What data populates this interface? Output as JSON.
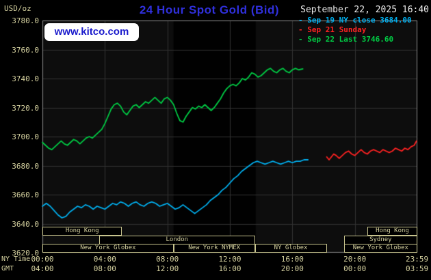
{
  "header": {
    "units": "USD/oz",
    "title": "24 Hour Spot Gold (Bid)",
    "datetime": "September 22, 2025 16:40",
    "logo": "www.kitco.com"
  },
  "legend": [
    {
      "marker": "-",
      "label": "Sep 19 NY close 3684.00",
      "color": "#00b0f0"
    },
    {
      "marker": "-",
      "label": "Sep 21 Sunday",
      "color": "#ff2222"
    },
    {
      "marker": "-",
      "label": "Sep 22 Last 3746.60",
      "color": "#00cc44"
    }
  ],
  "axes": {
    "ny_time_label": "NY Time",
    "gmt_label": "GMT"
  },
  "sessions": [
    {
      "label": "Hong Kong",
      "row": 0,
      "start": 0,
      "end": 5.1
    },
    {
      "label": "Hong Kong",
      "row": 0,
      "start": 20.8,
      "end": 24
    },
    {
      "label": "London",
      "row": 1,
      "start": 3.63,
      "end": 13.6
    },
    {
      "label": "Sydney",
      "row": 1,
      "start": 19.3,
      "end": 24
    },
    {
      "label": "New York Globex",
      "row": 2,
      "start": 0,
      "end": 8.4
    },
    {
      "label": "New York NYMEX",
      "row": 2,
      "start": 8.4,
      "end": 13.6
    },
    {
      "label": "NY Globex",
      "row": 2,
      "start": 13.6,
      "end": 18.2
    },
    {
      "label": "New York Globex",
      "row": 2,
      "start": 19.3,
      "end": 24
    }
  ],
  "colors": {
    "background": "#000000",
    "plot_bg": "#0d0d0d",
    "nymex_band": "#010101",
    "grid": "#333333",
    "frame": "#8c8c8c",
    "axis_text": "#d6d2a0",
    "title_blue": "#3030dd",
    "datetime_text": "#ececec",
    "logo_blue": "#1a1acc",
    "logo_bg": "#ffffff",
    "session_border": "#c8c48e"
  },
  "chart_data": {
    "type": "line",
    "title": "24 Hour Spot Gold (Bid)",
    "ylabel": "USD/oz",
    "ylim": [
      3620,
      3780
    ],
    "y_tick_step": 20,
    "y_tick_labels": [
      "3780.0",
      "3760.0",
      "3740.0",
      "3720.0",
      "3700.0",
      "3680.0",
      "3660.0",
      "3640.0",
      "3620.0"
    ],
    "xlim_hours": [
      0,
      24
    ],
    "x_ticks": [
      {
        "hour": 0,
        "ny": "00:00",
        "gmt": "04:00"
      },
      {
        "hour": 4,
        "ny": "04:00",
        "gmt": "08:00"
      },
      {
        "hour": 8,
        "ny": "08:00",
        "gmt": "12:00"
      },
      {
        "hour": 12,
        "ny": "12:00",
        "gmt": "16:00"
      },
      {
        "hour": 16,
        "ny": "16:00",
        "gmt": "20:00"
      },
      {
        "hour": 20,
        "ny": "20:00",
        "gmt": "00:00"
      },
      {
        "hour": 23.983,
        "ny": "23:59",
        "gmt": "03:59"
      }
    ],
    "grid": true,
    "legend_position": "top-right",
    "nymex_band_hours": [
      8.4,
      13.65
    ],
    "series": [
      {
        "name": "Sep 19 NY close 3684.00",
        "color": "#00b0f0",
        "points": [
          [
            0,
            3652
          ],
          [
            0.25,
            3654
          ],
          [
            0.5,
            3652
          ],
          [
            0.75,
            3649
          ],
          [
            1,
            3646
          ],
          [
            1.25,
            3644
          ],
          [
            1.5,
            3645
          ],
          [
            1.75,
            3648
          ],
          [
            2,
            3650
          ],
          [
            2.25,
            3652
          ],
          [
            2.5,
            3651
          ],
          [
            2.75,
            3653
          ],
          [
            3,
            3652
          ],
          [
            3.25,
            3650
          ],
          [
            3.5,
            3652
          ],
          [
            3.75,
            3651
          ],
          [
            4,
            3650
          ],
          [
            4.25,
            3652
          ],
          [
            4.5,
            3654
          ],
          [
            4.75,
            3653
          ],
          [
            5,
            3655
          ],
          [
            5.25,
            3654
          ],
          [
            5.5,
            3652
          ],
          [
            5.75,
            3654
          ],
          [
            6,
            3655
          ],
          [
            6.25,
            3653
          ],
          [
            6.5,
            3652
          ],
          [
            6.75,
            3654
          ],
          [
            7,
            3655
          ],
          [
            7.25,
            3654
          ],
          [
            7.5,
            3652
          ],
          [
            7.75,
            3653
          ],
          [
            8,
            3654
          ],
          [
            8.25,
            3652
          ],
          [
            8.5,
            3650
          ],
          [
            8.75,
            3651
          ],
          [
            9,
            3653
          ],
          [
            9.25,
            3651
          ],
          [
            9.5,
            3649
          ],
          [
            9.75,
            3647
          ],
          [
            10,
            3649
          ],
          [
            10.25,
            3651
          ],
          [
            10.5,
            3653
          ],
          [
            10.75,
            3656
          ],
          [
            11,
            3658
          ],
          [
            11.25,
            3660
          ],
          [
            11.5,
            3663
          ],
          [
            11.75,
            3665
          ],
          [
            12,
            3668
          ],
          [
            12.25,
            3671
          ],
          [
            12.5,
            3673
          ],
          [
            12.75,
            3676
          ],
          [
            13,
            3678
          ],
          [
            13.25,
            3680
          ],
          [
            13.5,
            3682
          ],
          [
            13.75,
            3683
          ],
          [
            14,
            3682
          ],
          [
            14.25,
            3681
          ],
          [
            14.5,
            3682
          ],
          [
            14.75,
            3683
          ],
          [
            15,
            3682
          ],
          [
            15.25,
            3681
          ],
          [
            15.5,
            3682
          ],
          [
            15.75,
            3683
          ],
          [
            16,
            3682
          ],
          [
            16.25,
            3683
          ],
          [
            16.5,
            3683
          ],
          [
            16.75,
            3684
          ],
          [
            17,
            3684
          ]
        ]
      },
      {
        "name": "Sep 21 Sunday",
        "color": "#ff2222",
        "points": [
          [
            18.2,
            3686
          ],
          [
            18.35,
            3684
          ],
          [
            18.5,
            3686
          ],
          [
            18.65,
            3688
          ],
          [
            18.8,
            3687
          ],
          [
            19,
            3685
          ],
          [
            19.2,
            3687
          ],
          [
            19.4,
            3689
          ],
          [
            19.6,
            3690
          ],
          [
            19.8,
            3688
          ],
          [
            20,
            3687
          ],
          [
            20.2,
            3689
          ],
          [
            20.4,
            3691
          ],
          [
            20.6,
            3689
          ],
          [
            20.8,
            3688
          ],
          [
            21,
            3690
          ],
          [
            21.2,
            3691
          ],
          [
            21.4,
            3690
          ],
          [
            21.6,
            3689
          ],
          [
            21.8,
            3691
          ],
          [
            22,
            3690
          ],
          [
            22.2,
            3689
          ],
          [
            22.4,
            3690
          ],
          [
            22.6,
            3692
          ],
          [
            22.8,
            3691
          ],
          [
            23,
            3690
          ],
          [
            23.2,
            3692
          ],
          [
            23.4,
            3691
          ],
          [
            23.6,
            3693
          ],
          [
            23.8,
            3694
          ],
          [
            23.95,
            3697
          ]
        ]
      },
      {
        "name": "Sep 22 Last 3746.60",
        "color": "#00cc44",
        "points": [
          [
            0,
            3696
          ],
          [
            0.2,
            3694
          ],
          [
            0.4,
            3692
          ],
          [
            0.6,
            3691
          ],
          [
            0.8,
            3693
          ],
          [
            1,
            3695
          ],
          [
            1.2,
            3697
          ],
          [
            1.4,
            3695
          ],
          [
            1.6,
            3694
          ],
          [
            1.8,
            3696
          ],
          [
            2,
            3698
          ],
          [
            2.2,
            3697
          ],
          [
            2.4,
            3695
          ],
          [
            2.6,
            3697
          ],
          [
            2.8,
            3699
          ],
          [
            3,
            3700
          ],
          [
            3.2,
            3699
          ],
          [
            3.4,
            3701
          ],
          [
            3.6,
            3703
          ],
          [
            3.8,
            3705
          ],
          [
            4,
            3709
          ],
          [
            4.2,
            3714
          ],
          [
            4.4,
            3719
          ],
          [
            4.6,
            3722
          ],
          [
            4.8,
            3723
          ],
          [
            5,
            3721
          ],
          [
            5.2,
            3717
          ],
          [
            5.4,
            3715
          ],
          [
            5.6,
            3718
          ],
          [
            5.8,
            3721
          ],
          [
            6,
            3722
          ],
          [
            6.2,
            3720
          ],
          [
            6.4,
            3722
          ],
          [
            6.6,
            3724
          ],
          [
            6.8,
            3723
          ],
          [
            7,
            3725
          ],
          [
            7.2,
            3727
          ],
          [
            7.4,
            3725
          ],
          [
            7.6,
            3723
          ],
          [
            7.8,
            3726
          ],
          [
            8,
            3727
          ],
          [
            8.2,
            3725
          ],
          [
            8.4,
            3722
          ],
          [
            8.6,
            3716
          ],
          [
            8.8,
            3711
          ],
          [
            9,
            3710
          ],
          [
            9.2,
            3714
          ],
          [
            9.4,
            3717
          ],
          [
            9.6,
            3720
          ],
          [
            9.8,
            3719
          ],
          [
            10,
            3721
          ],
          [
            10.2,
            3720
          ],
          [
            10.4,
            3722
          ],
          [
            10.6,
            3720
          ],
          [
            10.8,
            3718
          ],
          [
            11,
            3720
          ],
          [
            11.2,
            3723
          ],
          [
            11.4,
            3726
          ],
          [
            11.6,
            3730
          ],
          [
            11.8,
            3733
          ],
          [
            12,
            3735
          ],
          [
            12.2,
            3736
          ],
          [
            12.4,
            3735
          ],
          [
            12.6,
            3737
          ],
          [
            12.8,
            3740
          ],
          [
            13,
            3739
          ],
          [
            13.2,
            3741
          ],
          [
            13.4,
            3744
          ],
          [
            13.6,
            3743
          ],
          [
            13.8,
            3741
          ],
          [
            14,
            3742
          ],
          [
            14.2,
            3744
          ],
          [
            14.4,
            3746
          ],
          [
            14.6,
            3747
          ],
          [
            14.8,
            3745
          ],
          [
            15,
            3744
          ],
          [
            15.2,
            3746
          ],
          [
            15.4,
            3747
          ],
          [
            15.6,
            3745
          ],
          [
            15.8,
            3744
          ],
          [
            16,
            3746
          ],
          [
            16.2,
            3747
          ],
          [
            16.4,
            3746
          ],
          [
            16.67,
            3746.6
          ]
        ]
      }
    ]
  }
}
